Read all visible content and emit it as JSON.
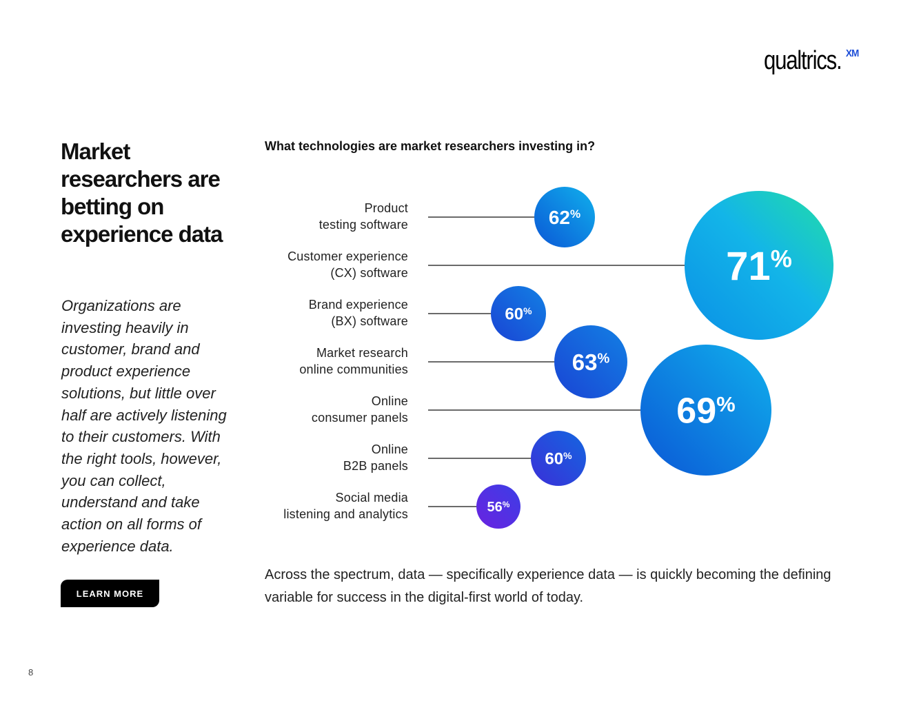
{
  "brand": {
    "logo_text": "qualtrics.",
    "logo_badge": "XM"
  },
  "left": {
    "headline": "Market researchers are betting on experience data",
    "body": "Organizations are investing heavily in customer, brand and product experience solutions, but little over half are actively listening to their customers. With the right tools, however, you can collect, understand and take action on all forms of experience data.",
    "cta_label": "LEARN MORE"
  },
  "chart_data": {
    "type": "bubble",
    "title": "What technologies are market researchers investing in?",
    "unit": "%",
    "categories": [
      [
        "Product",
        "testing software"
      ],
      [
        "Customer experience",
        "(CX) software"
      ],
      [
        "Brand experience",
        "(BX) software"
      ],
      [
        "Market research",
        "online communities"
      ],
      [
        "Online",
        "consumer panels"
      ],
      [
        "Online",
        "B2B panels"
      ],
      [
        "Social media",
        "listening and analytics"
      ]
    ],
    "values": [
      62,
      71,
      60,
      63,
      69,
      60,
      56
    ],
    "value_labels": [
      "62",
      "71",
      "60",
      "63",
      "69",
      "60",
      "56"
    ],
    "colors": {
      "teal": "#1fd8a8",
      "cyan": "#11b3ea",
      "blue": "#0c6ddb",
      "violet": "#5b2ce0"
    }
  },
  "footer": {
    "text": "Across the spectrum, data — specifically experience data — is quickly becoming the defining variable for success in the digital-first world of today."
  },
  "page": {
    "number": "8"
  }
}
